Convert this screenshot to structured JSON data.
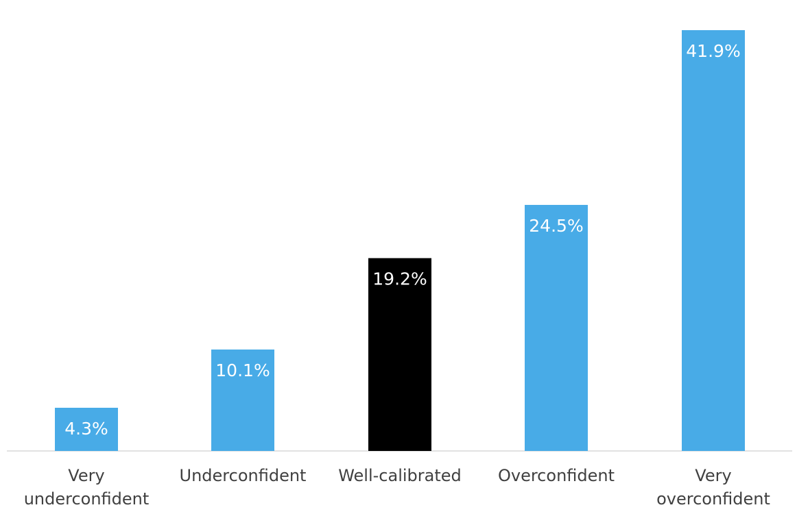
{
  "chart_data": {
    "type": "bar",
    "categories": [
      [
        "Very",
        "underconfident"
      ],
      [
        "Underconfident"
      ],
      [
        "Well-calibrated"
      ],
      [
        "Overconfident"
      ],
      [
        "Very",
        "overconfident"
      ]
    ],
    "values": [
      4.3,
      10.1,
      19.2,
      24.5,
      41.9
    ],
    "value_labels": [
      "4.3%",
      "10.1%",
      "19.2%",
      "24.5%",
      "41.9%"
    ],
    "unit": "%",
    "title": "",
    "xlabel": "",
    "ylabel": "",
    "ylim": [
      0,
      41.9
    ],
    "grid": false,
    "legend": "none",
    "colors": {
      "default_bar": "#48abe7",
      "highlight_bar": "#000000",
      "highlight_index": 2,
      "value_label": "#ffffff",
      "category_label": "#404040",
      "axis_line": "#d9d9d9"
    }
  }
}
